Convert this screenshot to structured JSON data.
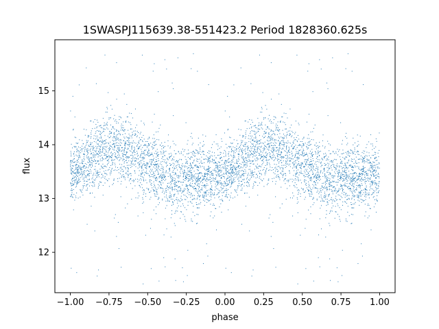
{
  "chart_data": {
    "type": "scatter",
    "title": "1SWASPJ115639.38-551423.2 Period 1828360.625s",
    "xlabel": "phase",
    "ylabel": "flux",
    "xlim": [
      -1.1,
      1.1
    ],
    "ylim": [
      11.25,
      15.95
    ],
    "xticks": [
      -1.0,
      -0.75,
      -0.5,
      -0.25,
      0.0,
      0.25,
      0.5,
      0.75,
      1.0
    ],
    "xtick_labels": [
      "−1.00",
      "−0.75",
      "−0.50",
      "−0.25",
      "0.00",
      "0.25",
      "0.50",
      "0.75",
      "1.00"
    ],
    "yticks": [
      12,
      13,
      14,
      15
    ],
    "ytick_labels": [
      "12",
      "13",
      "14",
      "15"
    ],
    "grid": false,
    "legend": "none",
    "marker_color": "#1f77b4",
    "series": [
      {
        "phase_profile": {
          "phase": [
            0.0,
            0.05,
            0.1,
            0.15,
            0.2,
            0.25,
            0.3,
            0.35,
            0.4,
            0.45,
            0.5,
            0.55,
            0.6,
            0.65,
            0.7,
            0.75,
            0.8,
            0.85,
            0.9,
            0.95,
            1.0
          ],
          "flux_center": [
            13.45,
            13.55,
            13.65,
            13.75,
            13.8,
            13.9,
            13.95,
            13.85,
            13.8,
            13.7,
            13.6,
            13.5,
            13.45,
            13.4,
            13.35,
            13.35,
            13.4,
            13.35,
            13.4,
            13.45,
            13.45
          ],
          "flux_spread": [
            0.5,
            0.5,
            0.5,
            0.55,
            0.55,
            0.6,
            0.6,
            0.6,
            0.6,
            0.55,
            0.55,
            0.55,
            0.55,
            0.6,
            0.6,
            0.6,
            0.6,
            0.55,
            0.5,
            0.5,
            0.5
          ]
        },
        "outlier_range": [
          11.4,
          15.8
        ],
        "n_points": 5200
      }
    ]
  }
}
